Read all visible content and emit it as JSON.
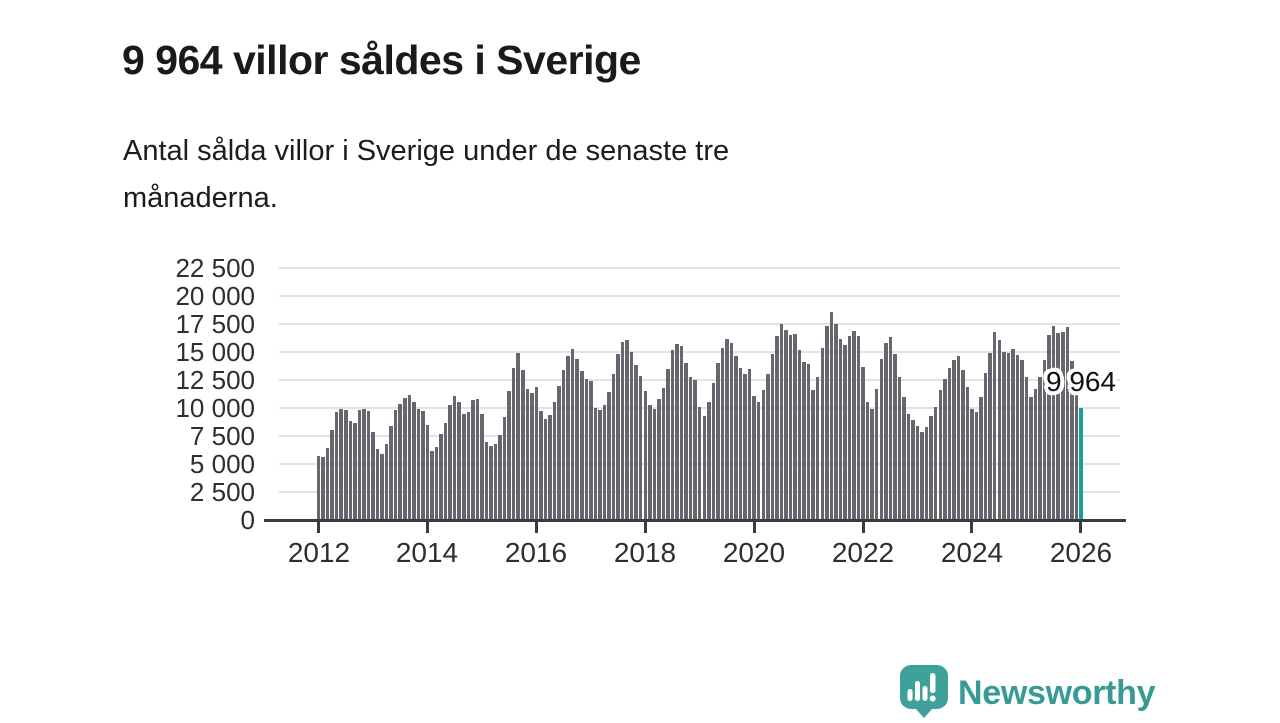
{
  "header": {
    "title": "9 964 villor såldes i Sverige",
    "subtitle_line1": "Antal sålda villor i Sverige under de senaste tre",
    "subtitle_line2": "månaderna."
  },
  "chart_data": {
    "type": "bar",
    "title": "9 964 villor såldes i Sverige",
    "subtitle": "Antal sålda villor i Sverige under de senaste tre månaderna.",
    "unit": "antal sålda villor (rullande tremånaderssumma)",
    "frequency": "monthly",
    "x_start": "2012-01",
    "x_end": "2026-01",
    "xlabel": "",
    "ylabel": "",
    "ylim": [
      0,
      22500
    ],
    "grid": true,
    "legend": "none",
    "bar_color": "#66666e",
    "highlight_color": "#14a29a",
    "highlight_index": "last",
    "annotation": {
      "text": "9 964",
      "value": 9964
    },
    "yticks": [
      {
        "value": 0,
        "label": "0"
      },
      {
        "value": 2500,
        "label": "2 500"
      },
      {
        "value": 5000,
        "label": "5 000"
      },
      {
        "value": 7500,
        "label": "7 500"
      },
      {
        "value": 10000,
        "label": "10 000"
      },
      {
        "value": 12500,
        "label": "12 500"
      },
      {
        "value": 15000,
        "label": "15 000"
      },
      {
        "value": 17500,
        "label": "17 500"
      },
      {
        "value": 20000,
        "label": "20 000"
      },
      {
        "value": 22500,
        "label": "22 500"
      }
    ],
    "xticks": [
      {
        "year": 2012,
        "label": "2012"
      },
      {
        "year": 2014,
        "label": "2014"
      },
      {
        "year": 2016,
        "label": "2016"
      },
      {
        "year": 2018,
        "label": "2018"
      },
      {
        "year": 2020,
        "label": "2020"
      },
      {
        "year": 2022,
        "label": "2022"
      },
      {
        "year": 2024,
        "label": "2024"
      },
      {
        "year": 2026,
        "label": "2026"
      }
    ],
    "values": [
      5700,
      5650,
      6450,
      8000,
      9600,
      9950,
      9800,
      8850,
      8700,
      9800,
      9900,
      9700,
      7900,
      6300,
      5900,
      6800,
      8400,
      9800,
      10400,
      10900,
      11200,
      10500,
      9900,
      9750,
      8500,
      6200,
      6500,
      7700,
      8700,
      10300,
      11100,
      10500,
      9500,
      9600,
      10700,
      10800,
      9500,
      7000,
      6600,
      6800,
      7600,
      9200,
      11500,
      13600,
      14900,
      13400,
      11700,
      11300,
      11900,
      9700,
      9000,
      9400,
      10500,
      12000,
      13400,
      14600,
      15300,
      14400,
      13300,
      12600,
      12400,
      10000,
      9800,
      10300,
      11400,
      13000,
      14800,
      15900,
      16100,
      15000,
      13800,
      12900,
      11500,
      10300,
      9900,
      10800,
      11800,
      13500,
      15200,
      15700,
      15500,
      14000,
      12800,
      12500,
      10100,
      9300,
      10500,
      12200,
      14000,
      15400,
      16200,
      15800,
      14600,
      13600,
      13000,
      13500,
      11100,
      10500,
      11600,
      13000,
      14800,
      16400,
      17500,
      17000,
      16500,
      16600,
      15200,
      14100,
      13900,
      11600,
      12800,
      15400,
      17300,
      18600,
      17500,
      16200,
      15600,
      16400,
      16900,
      16400,
      13700,
      10500,
      9900,
      11700,
      14400,
      15800,
      16300,
      14800,
      12800,
      11000,
      9500,
      8900,
      8400,
      7900,
      8300,
      9300,
      10100,
      11600,
      12600,
      13600,
      14300,
      14600,
      13400,
      11900,
      9900,
      9600,
      11000,
      13100,
      14900,
      16800,
      16100,
      15000,
      14900,
      15300,
      14700,
      14300,
      12800,
      11000,
      11700,
      12800,
      14300,
      16500,
      17300,
      16700,
      16800,
      17200,
      14200,
      12100,
      9964
    ]
  },
  "footer": {
    "brand": "Newsworthy",
    "logo_icon": "newsworthy-speech-bubble-chart-icon",
    "brand_color": "#379a94",
    "icon_color": "#3ea29a"
  }
}
